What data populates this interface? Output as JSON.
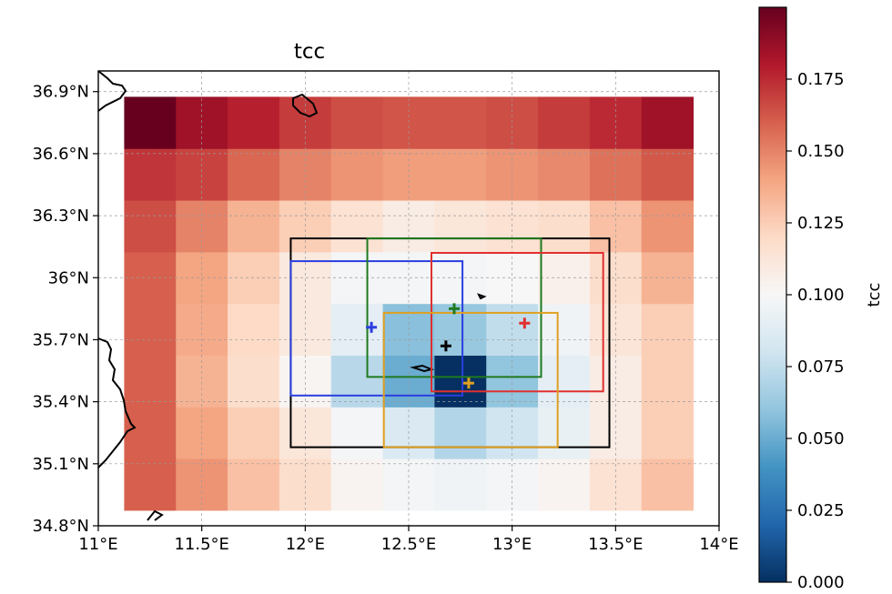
{
  "chart_data": {
    "type": "heatmap",
    "title": "tcc",
    "colorbar_label": "tcc",
    "colormap": "RdBu_r",
    "xlim": [
      11.0,
      14.0
    ],
    "ylim": [
      34.8,
      37.0
    ],
    "x_ticks": [
      {
        "value": 11.0,
        "label": "11°E"
      },
      {
        "value": 11.5,
        "label": "11.5°E"
      },
      {
        "value": 12.0,
        "label": "12°E"
      },
      {
        "value": 12.5,
        "label": "12.5°E"
      },
      {
        "value": 13.0,
        "label": "13°E"
      },
      {
        "value": 13.5,
        "label": "13.5°E"
      },
      {
        "value": 14.0,
        "label": "14°E"
      }
    ],
    "y_ticks": [
      {
        "value": 34.8,
        "label": "34.8°N"
      },
      {
        "value": 35.1,
        "label": "35.1°N"
      },
      {
        "value": 35.4,
        "label": "35.4°N"
      },
      {
        "value": 35.7,
        "label": "35.7°N"
      },
      {
        "value": 36.0,
        "label": "36°N"
      },
      {
        "value": 36.3,
        "label": "36.3°N"
      },
      {
        "value": 36.6,
        "label": "36.6°N"
      },
      {
        "value": 36.9,
        "label": "36.9°N"
      }
    ],
    "colorbar_range": [
      0.0,
      0.2
    ],
    "colorbar_ticks": [
      {
        "value": 0.0,
        "label": "0.000"
      },
      {
        "value": 0.025,
        "label": "0.025"
      },
      {
        "value": 0.05,
        "label": "0.050"
      },
      {
        "value": 0.075,
        "label": "0.075"
      },
      {
        "value": 0.1,
        "label": "0.100"
      },
      {
        "value": 0.125,
        "label": "0.125"
      },
      {
        "value": 0.15,
        "label": "0.150"
      },
      {
        "value": 0.175,
        "label": "0.175"
      }
    ],
    "grid": true,
    "grid_lon_edges": [
      11.125,
      11.375,
      11.625,
      11.875,
      12.125,
      12.375,
      12.625,
      12.875,
      13.125,
      13.375,
      13.625,
      13.875
    ],
    "grid_lat_edges": [
      34.875,
      35.125,
      35.375,
      35.625,
      35.875,
      36.125,
      36.375,
      36.625,
      36.875
    ],
    "grid_values": [
      [
        0.16,
        0.145,
        0.13,
        0.118,
        0.103,
        0.098,
        0.096,
        0.098,
        0.103,
        0.115,
        0.13
      ],
      [
        0.16,
        0.14,
        0.125,
        0.112,
        0.098,
        0.085,
        0.07,
        0.08,
        0.092,
        0.108,
        0.125
      ],
      [
        0.16,
        0.135,
        0.118,
        0.102,
        0.072,
        0.05,
        0.0,
        0.06,
        0.09,
        0.108,
        0.125
      ],
      [
        0.16,
        0.138,
        0.12,
        0.11,
        0.09,
        0.058,
        0.062,
        0.075,
        0.096,
        0.113,
        0.125
      ],
      [
        0.16,
        0.14,
        0.125,
        0.11,
        0.098,
        0.098,
        0.098,
        0.1,
        0.105,
        0.118,
        0.135
      ],
      [
        0.165,
        0.15,
        0.135,
        0.125,
        0.115,
        0.108,
        0.112,
        0.115,
        0.118,
        0.13,
        0.145
      ],
      [
        0.172,
        0.168,
        0.158,
        0.15,
        0.145,
        0.142,
        0.142,
        0.145,
        0.148,
        0.155,
        0.162
      ],
      [
        0.2,
        0.185,
        0.178,
        0.17,
        0.165,
        0.163,
        0.163,
        0.165,
        0.17,
        0.175,
        0.185
      ]
    ],
    "boxes": [
      {
        "color": "#000000",
        "lon": [
          11.93,
          13.47
        ],
        "lat": [
          35.18,
          36.19
        ]
      },
      {
        "color": "#2a3ee0",
        "lon": [
          11.93,
          12.76
        ],
        "lat": [
          35.43,
          36.08
        ]
      },
      {
        "color": "#1f7a1f",
        "lon": [
          12.3,
          13.14
        ],
        "lat": [
          35.52,
          36.19
        ]
      },
      {
        "color": "#e03030",
        "lon": [
          12.61,
          13.44
        ],
        "lat": [
          35.45,
          36.12
        ]
      },
      {
        "color": "#e0a020",
        "lon": [
          12.38,
          13.22
        ],
        "lat": [
          35.18,
          35.83
        ]
      }
    ],
    "markers": [
      {
        "color": "#2a3ee0",
        "lon": 12.32,
        "lat": 35.76
      },
      {
        "color": "#1f7a1f",
        "lon": 12.72,
        "lat": 35.85
      },
      {
        "color": "#e03030",
        "lon": 13.06,
        "lat": 35.78
      },
      {
        "color": "#000000",
        "lon": 12.68,
        "lat": 35.67
      },
      {
        "color": "#e0a020",
        "lon": 12.79,
        "lat": 35.49
      }
    ]
  }
}
